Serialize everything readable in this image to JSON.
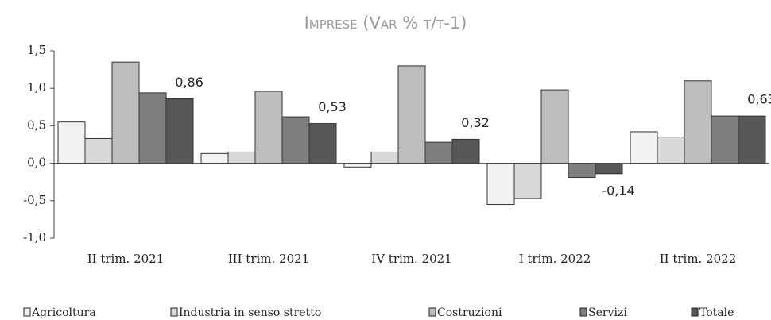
{
  "chart_data": {
    "type": "bar",
    "title": "Imprese (Var % t/t-1)",
    "categories": [
      "II trim. 2021",
      "III trim. 2021",
      "IV trim. 2021",
      "I trim. 2022",
      "II trim. 2022"
    ],
    "series": [
      {
        "name": "Agricoltura",
        "color": "#f2f2f2",
        "values": [
          0.55,
          0.13,
          -0.05,
          -0.55,
          0.42
        ]
      },
      {
        "name": "Industria in senso stretto",
        "color": "#d9d9d9",
        "values": [
          0.33,
          0.15,
          0.15,
          -0.47,
          0.35
        ]
      },
      {
        "name": "Costruzioni",
        "color": "#bdbdbd",
        "values": [
          1.35,
          0.96,
          1.3,
          0.98,
          1.1
        ]
      },
      {
        "name": "Servizi",
        "color": "#7f7f7f",
        "values": [
          0.94,
          0.62,
          0.28,
          -0.19,
          0.63
        ]
      },
      {
        "name": "Totale",
        "color": "#575757",
        "values": [
          0.86,
          0.53,
          0.32,
          -0.14,
          0.63
        ],
        "value_labels": [
          "0,86",
          "0,53",
          "0,32",
          "-0,14",
          "0,63"
        ]
      }
    ],
    "ylim": [
      -1.0,
      1.5
    ],
    "yticks": [
      {
        "value": -1.0,
        "label": "-1,0"
      },
      {
        "value": -0.5,
        "label": "-0,5"
      },
      {
        "value": 0,
        "label": "0,0"
      },
      {
        "value": 0.5,
        "label": "0,5"
      },
      {
        "value": 1.0,
        "label": "1,0"
      },
      {
        "value": 1.5,
        "label": "1,5"
      }
    ],
    "legend": "bottom"
  }
}
